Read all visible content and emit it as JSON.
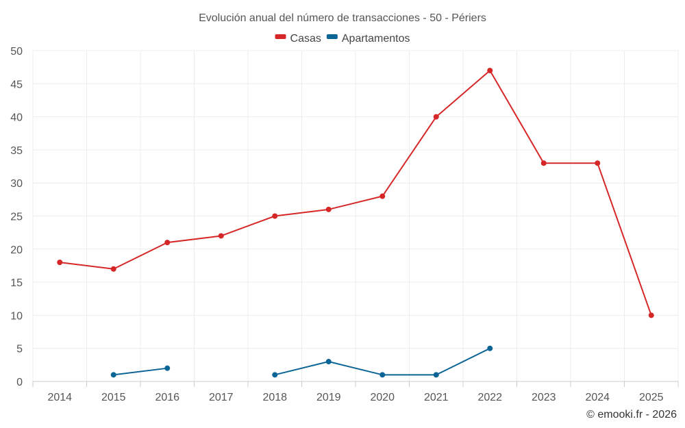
{
  "chart_data": {
    "type": "line",
    "title": "Evolución anual del número de transacciones - 50 - Périers",
    "categories": [
      "2014",
      "2015",
      "2016",
      "2017",
      "2018",
      "2019",
      "2020",
      "2021",
      "2022",
      "2023",
      "2024",
      "2025"
    ],
    "y_ticks": [
      "0",
      "5",
      "10",
      "15",
      "20",
      "25",
      "30",
      "35",
      "40",
      "45",
      "50"
    ],
    "ylim": [
      0,
      50
    ],
    "grid": true,
    "legend_position": "top-center",
    "series": [
      {
        "name": "Casas",
        "color": "#d62728",
        "values": [
          18,
          17,
          21,
          22,
          25,
          26,
          28,
          40,
          47,
          33,
          33,
          10
        ]
      },
      {
        "name": "Apartamentos",
        "color": "#0b6496",
        "values": [
          null,
          1,
          2,
          null,
          1,
          3,
          1,
          1,
          5,
          null,
          null,
          null
        ]
      }
    ],
    "credit": "© emooki.fr - 2026"
  }
}
